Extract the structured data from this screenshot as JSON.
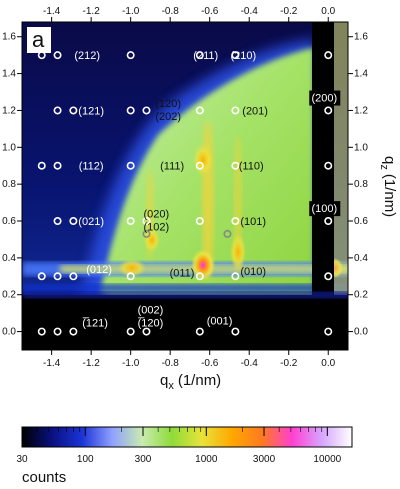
{
  "chart_data": {
    "type": "heatmap",
    "panel_label": "a",
    "xlabel": "q",
    "xlabel_sub": "x",
    "xlabel_unit": "(1/nm)",
    "ylabel": "q",
    "ylabel_sub": "z",
    "ylabel_unit": "(1/nm)",
    "xlim": [
      -1.55,
      0.1
    ],
    "ylim": [
      -0.1,
      1.68
    ],
    "x_ticks": [
      "-1.4",
      "-1.2",
      "-1.0",
      "-0.8",
      "-0.6",
      "-0.4",
      "-0.2",
      "0.0"
    ],
    "x_tick_values": [
      -1.4,
      -1.2,
      -1.0,
      -0.8,
      -0.6,
      -0.4,
      -0.2,
      0.0
    ],
    "y_ticks": [
      "0.0",
      "0.2",
      "0.4",
      "0.6",
      "0.8",
      "1.0",
      "1.2",
      "1.4",
      "1.6"
    ],
    "y_tick_values": [
      0.0,
      0.2,
      0.4,
      0.6,
      0.8,
      1.0,
      1.2,
      1.4,
      1.6
    ],
    "colorbar_label": "counts",
    "colorbar_scale": "log",
    "colorbar_range": [
      30,
      16000
    ],
    "colorbar_ticks": [
      "30",
      "100",
      "300",
      "1000",
      "3000",
      "10000"
    ],
    "colorbar_tick_values": [
      30,
      100,
      300,
      1000,
      3000,
      10000
    ],
    "colorbar_colors": [
      "#000000",
      "#0a1080",
      "#1b34d6",
      "#8fa0ff",
      "#c9ebb0",
      "#8fdb3a",
      "#e8e33a",
      "#ffa800",
      "#ff7a20",
      "#ff3fd0",
      "#d6a6ff",
      "#ffffff"
    ],
    "peaks": [
      {
        "label": "(212)",
        "qx": -1.22,
        "qz": 1.5
      },
      {
        "label": "(211)",
        "qx": -0.62,
        "qz": 1.5
      },
      {
        "label": "(210)",
        "qx": -0.43,
        "qz": 1.5
      },
      {
        "label": "(121)",
        "qx": -1.2,
        "qz": 1.2
      },
      {
        "label": "(120)",
        "qx": -0.81,
        "qz": 1.24
      },
      {
        "label": "(202)",
        "qx": -0.81,
        "qz": 1.17
      },
      {
        "label": "(201)",
        "qx": -0.37,
        "qz": 1.2
      },
      {
        "label": "(200)",
        "qx": -0.02,
        "qz": 1.27
      },
      {
        "label": "(112)",
        "qx": -1.2,
        "qz": 0.9
      },
      {
        "label": "(111)",
        "qx": -0.79,
        "qz": 0.9
      },
      {
        "label": "(110)",
        "qx": -0.39,
        "qz": 0.9
      },
      {
        "label": "(100)",
        "qx": -0.02,
        "qz": 0.67
      },
      {
        "label": "(020)",
        "qx": -0.87,
        "qz": 0.64
      },
      {
        "label": "(102)",
        "qx": -0.87,
        "qz": 0.57
      },
      {
        "label": "(021)",
        "qx": -1.2,
        "qz": 0.6
      },
      {
        "label": "(101)",
        "qx": -0.38,
        "qz": 0.6
      },
      {
        "label": "(012)",
        "qx": -1.16,
        "qz": 0.34
      },
      {
        "label": "(011)",
        "qx": -0.74,
        "qz": 0.32
      },
      {
        "label": "(010)",
        "qx": -0.38,
        "qz": 0.33
      },
      {
        "label": "(002)",
        "qx": -0.9,
        "qz": 0.12
      },
      {
        "label": "(̅120)",
        "qx": -0.9,
        "qz": 0.05
      },
      {
        "label": "(̅121)",
        "qx": -1.18,
        "qz": 0.05
      },
      {
        "label": "(001)",
        "qx": -0.55,
        "qz": 0.06
      }
    ],
    "ring_markers": [
      {
        "qx": -1.37,
        "qz": 1.5
      },
      {
        "qx": -1.37,
        "qz": 1.2
      },
      {
        "qx": -1.37,
        "qz": 0.9
      },
      {
        "qx": -1.37,
        "qz": 0.6
      },
      {
        "qx": -1.37,
        "qz": 0.3
      },
      {
        "qx": -1.37,
        "qz": 0.0
      },
      {
        "qx": -1.29,
        "qz": 1.2
      },
      {
        "qx": -1.29,
        "qz": 0.6
      },
      {
        "qx": -1.29,
        "qz": 0.3
      },
      {
        "qx": -1.29,
        "qz": 0.0
      },
      {
        "qx": -1.45,
        "qz": 1.5
      },
      {
        "qx": -1.45,
        "qz": 0.9
      },
      {
        "qx": -1.45,
        "qz": 0.3
      },
      {
        "qx": -1.45,
        "qz": 0.0
      },
      {
        "qx": -1.0,
        "qz": 1.5
      },
      {
        "qx": -1.0,
        "qz": 1.2
      },
      {
        "qx": -1.0,
        "qz": 0.9
      },
      {
        "qx": -1.0,
        "qz": 0.6
      },
      {
        "qx": -1.0,
        "qz": 0.3
      },
      {
        "qx": -1.0,
        "qz": 0.0
      },
      {
        "qx": -0.92,
        "qz": 1.2
      },
      {
        "qx": -0.92,
        "qz": 0.6
      },
      {
        "qx": -0.92,
        "qz": 0.0
      },
      {
        "qx": -0.65,
        "qz": 1.5
      },
      {
        "qx": -0.65,
        "qz": 1.2
      },
      {
        "qx": -0.65,
        "qz": 0.9
      },
      {
        "qx": -0.65,
        "qz": 0.6
      },
      {
        "qx": -0.65,
        "qz": 0.3
      },
      {
        "qx": -0.65,
        "qz": 0.0
      },
      {
        "qx": -0.47,
        "qz": 1.5
      },
      {
        "qx": -0.47,
        "qz": 1.2
      },
      {
        "qx": -0.47,
        "qz": 0.9
      },
      {
        "qx": -0.47,
        "qz": 0.6
      },
      {
        "qx": -0.47,
        "qz": 0.3
      },
      {
        "qx": -0.47,
        "qz": 0.0
      },
      {
        "qx": 0.0,
        "qz": 1.5
      },
      {
        "qx": 0.0,
        "qz": 1.2
      },
      {
        "qx": 0.0,
        "qz": 0.9
      },
      {
        "qx": 0.0,
        "qz": 0.6
      },
      {
        "qx": 0.0,
        "qz": 0.3
      },
      {
        "qx": 0.0,
        "qz": 0.0
      }
    ],
    "gray_markers": [
      {
        "qx": -0.92,
        "qz": 0.53
      },
      {
        "qx": -0.51,
        "qz": 0.53
      }
    ]
  }
}
